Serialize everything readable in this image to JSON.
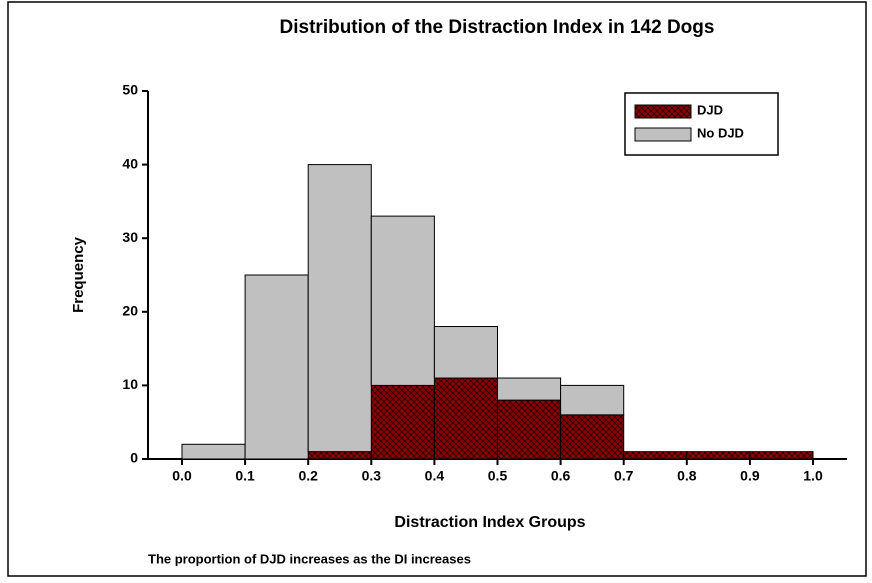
{
  "chart_data": {
    "type": "histogram",
    "title": "Distribution of the Distraction Index in 142 Dogs",
    "xlabel": "Distraction Index Groups",
    "ylabel": "Frequency",
    "annotation": "The proportion of DJD increases as the DI increases",
    "bins": [
      0,
      0.1,
      0.2,
      0.3,
      0.4,
      0.5,
      0.6,
      0.7,
      0.8,
      0.9,
      1
    ],
    "series": [
      {
        "name": "DJD",
        "color": "#8b0000",
        "values": [
          0,
          0,
          1,
          10,
          11,
          8,
          6,
          1,
          1,
          1
        ]
      },
      {
        "name": "No DJD",
        "color": "#c0c0c0",
        "values": [
          2,
          25,
          39,
          23,
          7,
          3,
          4,
          0,
          0,
          0
        ]
      }
    ],
    "stacked": true,
    "xlim": [
      0,
      1
    ],
    "xticks": [
      {
        "value": 0,
        "label": "0.0"
      },
      0.1,
      0.2,
      0.3,
      0.4,
      0.5,
      0.6,
      0.7,
      0.8,
      0.9,
      {
        "value": 1,
        "label": "1.0"
      }
    ],
    "ylim": [
      0,
      50
    ],
    "yticks": [
      0,
      10,
      20,
      30,
      40,
      50
    ],
    "legend": "upper right"
  }
}
